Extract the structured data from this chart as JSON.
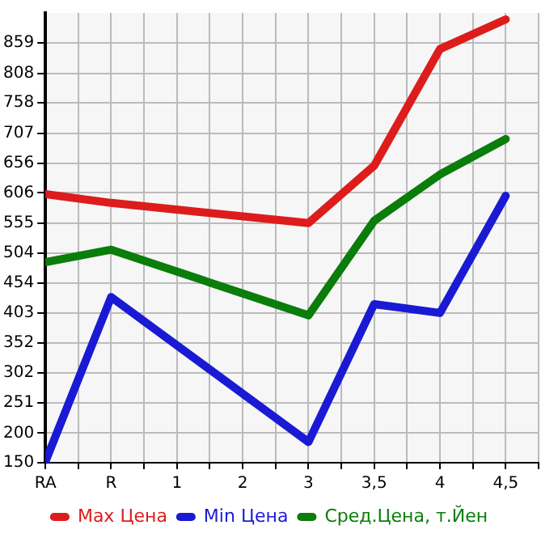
{
  "chart_data": {
    "type": "line",
    "categories": [
      "RA",
      "R",
      "1",
      "2",
      "3",
      "3,5",
      "4",
      "4,5"
    ],
    "series": [
      {
        "name": "Max Цена",
        "color": "#dd1c1c",
        "values": [
          604,
          589,
          null,
          null,
          555,
          652,
          849,
          899
        ]
      },
      {
        "name": "Min Цена",
        "color": "#1a1ad4",
        "values": [
          152,
          430,
          null,
          null,
          185,
          418,
          403,
          601
        ]
      },
      {
        "name": "Сред.Цена, т.Йен",
        "color": "#0a7d0a",
        "values": [
          489,
          510,
          null,
          null,
          399,
          559,
          637,
          697
        ]
      }
    ],
    "ylim": [
      150,
      910
    ],
    "yticks": [
      150,
      200,
      251,
      302,
      352,
      403,
      454,
      504,
      555,
      606,
      656,
      707,
      758,
      808,
      859
    ],
    "grid": true,
    "legend": "bottom",
    "marker": "none",
    "line_style": "solid"
  }
}
